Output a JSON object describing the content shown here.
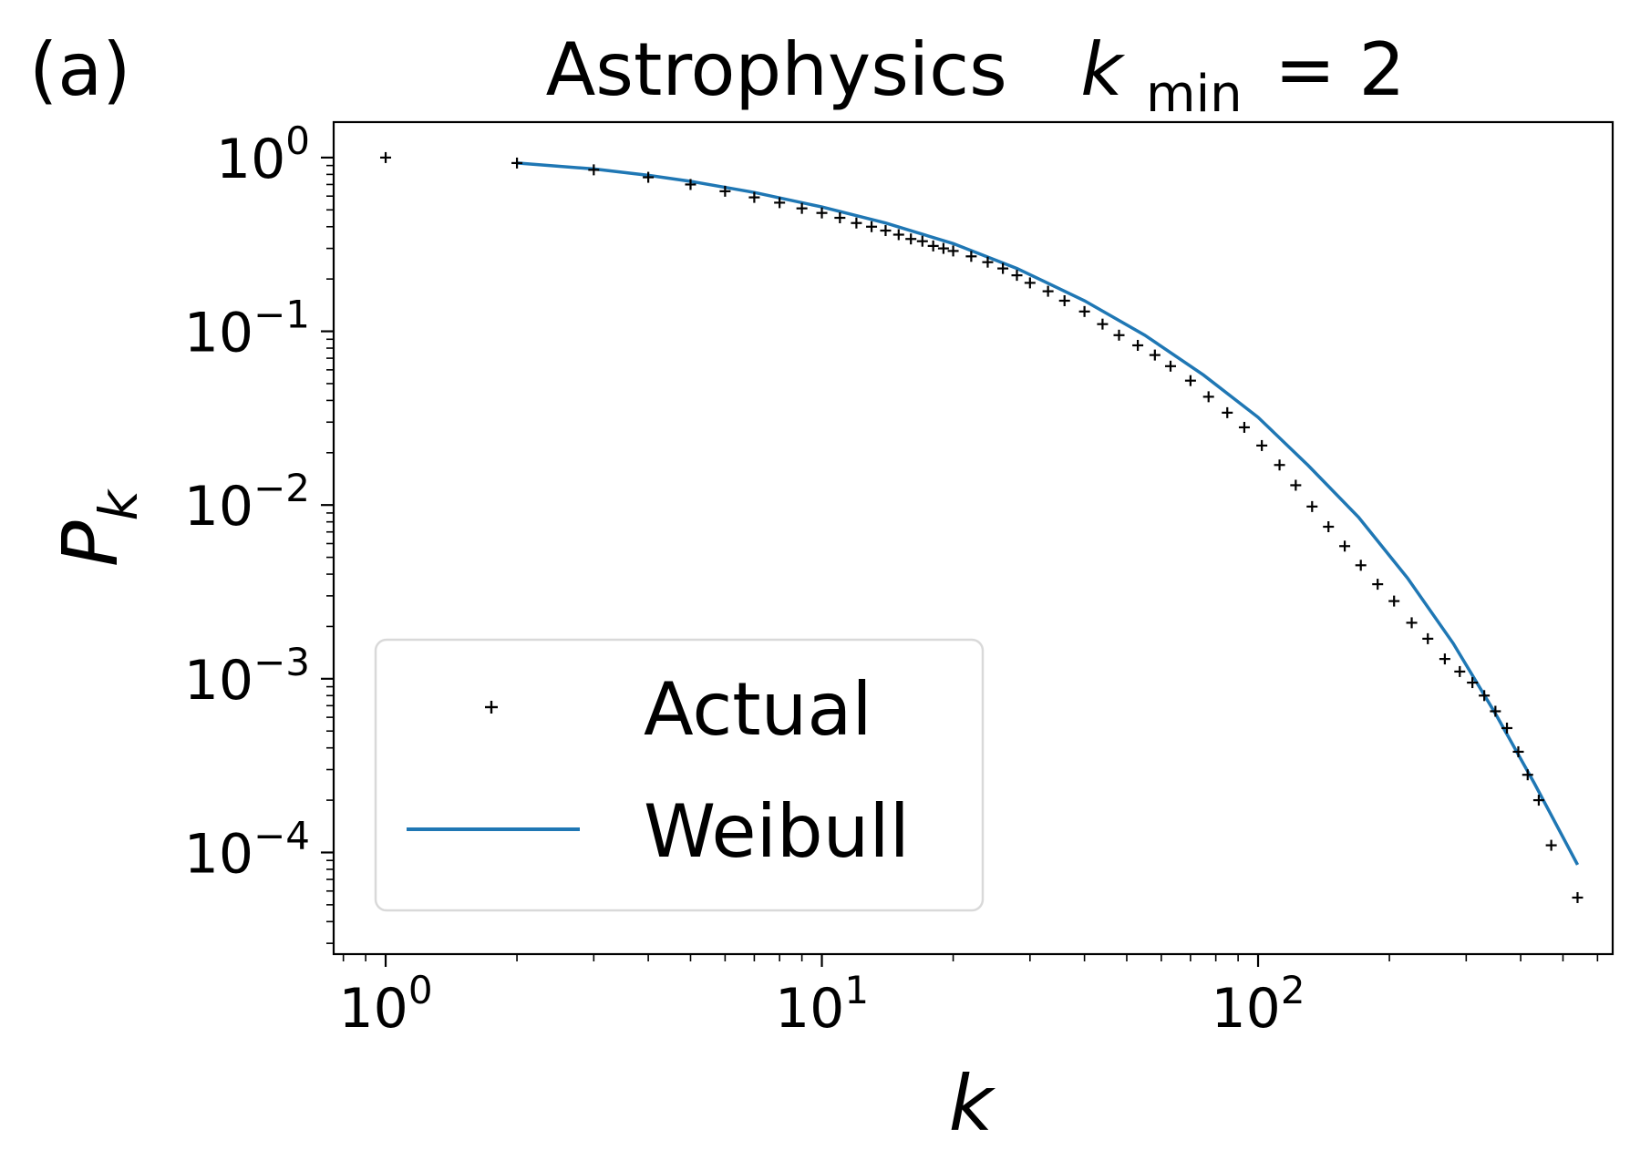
{
  "panel_label": "(a)",
  "title": {
    "main": "Astrophysics",
    "var": "k",
    "sub": "min",
    "eq": "= 2"
  },
  "legend": {
    "actual_label": "Actual",
    "fit_label": "Weibull",
    "placement": "lower-left"
  },
  "colors": {
    "actual": "#000000",
    "fit": "#1f77b4",
    "legend_border": "#d9d9d9"
  },
  "chart_data": {
    "type": "scatter",
    "title": "Astrophysics  k_min = 2",
    "xlabel": "k",
    "ylabel": "P_k",
    "xscale": "log",
    "yscale": "log",
    "xlim": [
      0.76,
      650
    ],
    "ylim": [
      2.6e-05,
      1.6
    ],
    "grid": false,
    "xticks": [
      {
        "value": 1,
        "base": "10",
        "exp": "0"
      },
      {
        "value": 10,
        "base": "10",
        "exp": "1"
      },
      {
        "value": 100,
        "base": "10",
        "exp": "2"
      }
    ],
    "yticks": [
      {
        "value": 1,
        "base": "10",
        "exp": "0"
      },
      {
        "value": 0.1,
        "base": "10",
        "exp": "−1"
      },
      {
        "value": 0.01,
        "base": "10",
        "exp": "−2"
      },
      {
        "value": 0.001,
        "base": "10",
        "exp": "−3"
      },
      {
        "value": 0.0001,
        "base": "10",
        "exp": "−4"
      }
    ],
    "series": [
      {
        "name": "Actual",
        "kind": "scatter",
        "marker": "+",
        "x": [
          1,
          2,
          3,
          4,
          5,
          6,
          7,
          8,
          9,
          10,
          11,
          12,
          13,
          14,
          15,
          16,
          17,
          18,
          19,
          20,
          22,
          24,
          26,
          28,
          30,
          33,
          36,
          40,
          44,
          48,
          53,
          58,
          63,
          70,
          77,
          85,
          93,
          102,
          112,
          122,
          133,
          145,
          158,
          172,
          188,
          205,
          225,
          245,
          268,
          290,
          310,
          330,
          350,
          372,
          395,
          415,
          440,
          470,
          540
        ],
        "y": [
          1.0,
          0.93,
          0.85,
          0.77,
          0.7,
          0.64,
          0.59,
          0.55,
          0.51,
          0.48,
          0.45,
          0.42,
          0.4,
          0.38,
          0.36,
          0.34,
          0.33,
          0.31,
          0.3,
          0.29,
          0.27,
          0.25,
          0.23,
          0.21,
          0.19,
          0.17,
          0.15,
          0.13,
          0.11,
          0.095,
          0.083,
          0.073,
          0.063,
          0.052,
          0.042,
          0.034,
          0.028,
          0.022,
          0.017,
          0.013,
          0.0098,
          0.0075,
          0.0058,
          0.0045,
          0.0035,
          0.0028,
          0.0021,
          0.0017,
          0.0013,
          0.0011,
          0.00095,
          0.0008,
          0.00065,
          0.00052,
          0.00038,
          0.00028,
          0.0002,
          0.00011,
          5.5e-05
        ]
      },
      {
        "name": "Weibull",
        "kind": "line",
        "x": [
          2,
          3,
          4,
          5,
          7,
          10,
          14,
          20,
          28,
          40,
          55,
          75,
          100,
          130,
          170,
          220,
          280,
          350,
          430,
          540
        ],
        "y": [
          0.93,
          0.86,
          0.79,
          0.73,
          0.63,
          0.52,
          0.42,
          0.32,
          0.23,
          0.15,
          0.095,
          0.056,
          0.032,
          0.017,
          0.0085,
          0.0038,
          0.0016,
          0.00063,
          0.00025,
          8.5e-05
        ]
      }
    ]
  }
}
